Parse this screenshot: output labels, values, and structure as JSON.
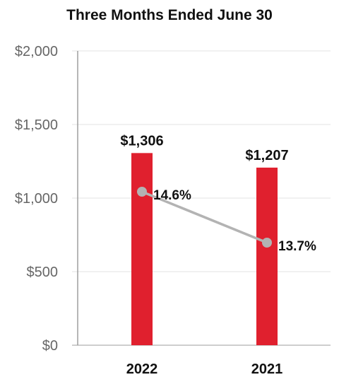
{
  "chart_data": {
    "type": "bar",
    "title": "Three Months Ended June 30",
    "categories": [
      "2022",
      "2021"
    ],
    "series": [
      {
        "type": "bar",
        "values": [
          1306,
          1207
        ],
        "labels": [
          "$1,306",
          "$1,207"
        ],
        "color": "#e0202e"
      },
      {
        "type": "line",
        "values": [
          14.6,
          13.7
        ],
        "labels": [
          "14.6%",
          "13.7%"
        ],
        "color": "#b3b3b3"
      }
    ],
    "y_axis": {
      "min": 0,
      "max": 2000,
      "ticks": [
        0,
        500,
        1000,
        1500,
        2000
      ],
      "tick_labels": [
        "$0",
        "$500",
        "$1,000",
        "$1,500",
        "$2,000"
      ]
    },
    "grid": true,
    "legend": "none"
  }
}
